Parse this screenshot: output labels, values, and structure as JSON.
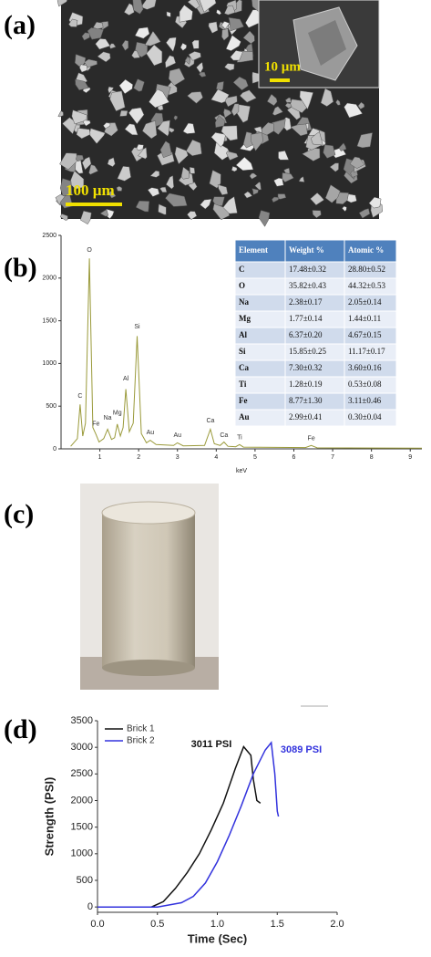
{
  "panel_labels": [
    "(a)",
    "(b)",
    "(c)",
    "(d)"
  ],
  "sem": {
    "main_scale": "100 µm",
    "inset_scale": "10 µm"
  },
  "table": {
    "header": [
      "Element",
      "Weight %",
      "Atomic %"
    ],
    "rows": [
      [
        "C",
        "17.48±0.32",
        "28.80±0.52"
      ],
      [
        "O",
        "35.82±0.43",
        "44.32±0.53"
      ],
      [
        "Na",
        "2.38±0.17",
        "2.05±0.14"
      ],
      [
        "Mg",
        "1.77±0.14",
        "1.44±0.11"
      ],
      [
        "Al",
        "6.37±0.20",
        "4.67±0.15"
      ],
      [
        "Si",
        "15.85±0.25",
        "11.17±0.17"
      ],
      [
        "Ca",
        "7.30±0.32",
        "3.60±0.16"
      ],
      [
        "Ti",
        "1.28±0.19",
        "0.53±0.08"
      ],
      [
        "Fe",
        "8.77±1.30",
        "3.11±0.46"
      ],
      [
        "Au",
        "2.99±0.41",
        "0.30±0.04"
      ]
    ]
  },
  "chart_data": [
    {
      "type": "line",
      "x_label": "keV",
      "xlim": [
        0,
        9.3
      ],
      "xticks": [
        1,
        2,
        3,
        4,
        5,
        6,
        7,
        8,
        9
      ],
      "ylim": [
        0,
        2500
      ],
      "yticks": [
        0,
        500,
        1000,
        1500,
        2000,
        2500
      ],
      "series": [
        {
          "color": "#9a9a3a",
          "x": [
            0.25,
            0.42,
            0.49,
            0.56,
            0.63,
            0.73,
            0.82,
            0.9,
            0.98,
            1.1,
            1.2,
            1.3,
            1.38,
            1.45,
            1.53,
            1.6,
            1.67,
            1.76,
            1.86,
            1.96,
            2.07,
            2.2,
            2.3,
            2.45,
            2.9,
            3.0,
            3.15,
            3.7,
            3.85,
            3.95,
            4.1,
            4.2,
            4.3,
            4.5,
            4.6,
            4.7,
            6.3,
            6.45,
            6.6,
            9.3
          ],
          "values": [
            30,
            120,
            520,
            150,
            300,
            2230,
            250,
            170,
            80,
            120,
            230,
            110,
            130,
            290,
            150,
            250,
            700,
            200,
            300,
            1320,
            180,
            70,
            100,
            50,
            40,
            70,
            35,
            40,
            230,
            60,
            40,
            80,
            30,
            25,
            50,
            20,
            15,
            40,
            12,
            8
          ]
        }
      ],
      "annotations": [
        {
          "text": "C",
          "x": 0.49,
          "y": 620
        },
        {
          "text": "O",
          "x": 0.73,
          "y": 2330
        },
        {
          "text": "Fe",
          "x": 0.9,
          "y": 290
        },
        {
          "text": "Na",
          "x": 1.2,
          "y": 360
        },
        {
          "text": "Mg",
          "x": 1.45,
          "y": 420
        },
        {
          "text": "Al",
          "x": 1.67,
          "y": 820
        },
        {
          "text": "Si",
          "x": 1.96,
          "y": 1430
        },
        {
          "text": "Au",
          "x": 2.3,
          "y": 190
        },
        {
          "text": "Au",
          "x": 3.0,
          "y": 160
        },
        {
          "text": "Ca",
          "x": 3.85,
          "y": 330
        },
        {
          "text": "Ca",
          "x": 4.2,
          "y": 160
        },
        {
          "text": "Ti",
          "x": 4.6,
          "y": 130
        },
        {
          "text": "Fe",
          "x": 6.45,
          "y": 120
        }
      ]
    },
    {
      "type": "line",
      "x_label": "Time (Sec)",
      "y_label": "Strength (PSI)",
      "xlim": [
        0,
        2
      ],
      "xticks": [
        {
          "value": 0,
          "label": "0.0"
        },
        {
          "value": 0.5,
          "label": "0.5"
        },
        {
          "value": 1,
          "label": "1.0"
        },
        {
          "value": 1.5,
          "label": "1.5"
        },
        {
          "value": 2,
          "label": "2.0"
        }
      ],
      "ylim": [
        -100,
        3500
      ],
      "yticks": [
        0,
        500,
        1000,
        1500,
        2000,
        2500,
        3000,
        3500
      ],
      "legend": "upper left",
      "series": [
        {
          "name": "Brick 1",
          "color": "#111111",
          "x": [
            0,
            0.45,
            0.55,
            0.65,
            0.75,
            0.85,
            0.95,
            1.05,
            1.15,
            1.22,
            1.28,
            1.3,
            1.33,
            1.36
          ],
          "values": [
            0,
            0,
            100,
            350,
            650,
            1000,
            1450,
            1950,
            2600,
            3011,
            2850,
            2400,
            2000,
            1950
          ]
        },
        {
          "name": "Brick 2",
          "color": "#3333dd",
          "x": [
            0,
            0.5,
            0.7,
            0.8,
            0.9,
            1.0,
            1.1,
            1.2,
            1.3,
            1.4,
            1.45,
            1.48,
            1.5,
            1.51
          ],
          "values": [
            0,
            0,
            80,
            200,
            450,
            850,
            1350,
            1900,
            2500,
            2950,
            3089,
            2500,
            1800,
            1700
          ]
        }
      ],
      "annotations": [
        {
          "text": "3011 PSI",
          "x": 0.95,
          "y": 3050,
          "color": "#111111"
        },
        {
          "text": "3089 PSI",
          "x": 1.7,
          "y": 2950,
          "color": "#3333dd"
        }
      ]
    }
  ]
}
